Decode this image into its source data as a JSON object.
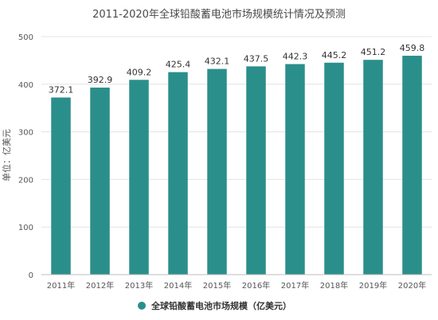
{
  "chart_data": {
    "type": "bar",
    "title": "2011-2020年全球铅酸蓄电池市场规模统计情况及预测",
    "ylabel": "单位：亿美元",
    "xlabel": "",
    "categories": [
      "2011年",
      "2012年",
      "2013年",
      "2014年",
      "2015年",
      "2016年",
      "2017年",
      "2018年",
      "2019年",
      "2020年"
    ],
    "series": [
      {
        "name": "全球铅酸蓄电池市场规模（亿美元）",
        "values": [
          372.1,
          392.9,
          409.2,
          425.4,
          432.1,
          437.5,
          442.3,
          445.2,
          451.2,
          459.8
        ],
        "value_labels": [
          "372.1",
          "392.9",
          "409.2",
          "425.4",
          "432.1",
          "437.5",
          "442.3",
          "445.2",
          "451.2",
          "459.8"
        ],
        "color": "#2a8f8b"
      }
    ],
    "ylim": [
      0,
      500
    ],
    "yticks": [
      0,
      100,
      200,
      300,
      400,
      500
    ],
    "grid": true,
    "legend_position": "bottom-center"
  }
}
